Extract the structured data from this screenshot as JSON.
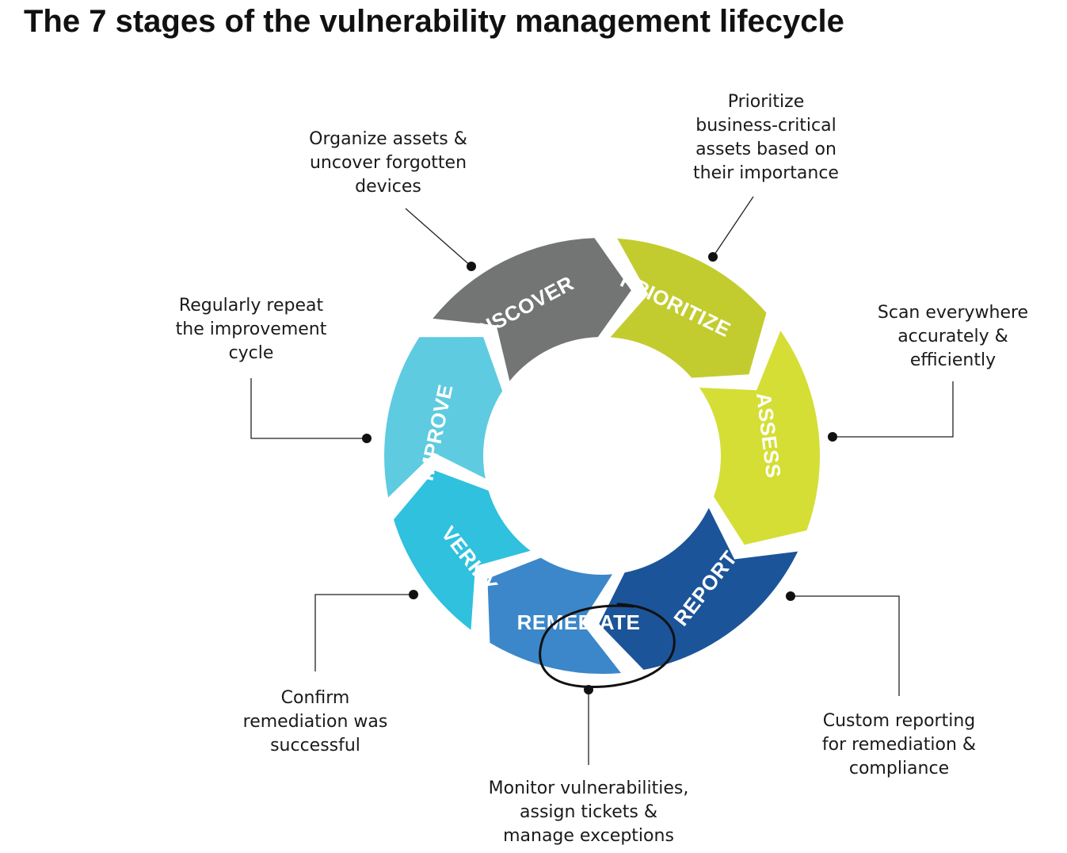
{
  "title": "The 7 stages of the vulnerability management lifecycle",
  "stages": [
    {
      "name": "DISCOVER",
      "color": "#737474",
      "description": [
        "Organize assets &",
        "uncover forgotten",
        "devices"
      ]
    },
    {
      "name": "PRIORITIZE",
      "color": "#c3cc2f",
      "description": [
        "Prioritize",
        "business-critical",
        "assets based on",
        "their importance"
      ]
    },
    {
      "name": "ASSESS",
      "color": "#d5de35",
      "description": [
        "Scan everywhere",
        "accurately &",
        "efficiently"
      ]
    },
    {
      "name": "REPORT",
      "color": "#1c5499",
      "description": [
        "Custom reporting",
        "for remediation &",
        "compliance"
      ]
    },
    {
      "name": "REMEDIATE",
      "color": "#3b87c9",
      "description": [
        "Monitor vulnerabilities,",
        "assign tickets &",
        "manage exceptions"
      ]
    },
    {
      "name": "VERIFY",
      "color": "#2fc1de",
      "description": [
        "Confirm",
        "remediation was",
        "successful"
      ]
    },
    {
      "name": "IMPROVE",
      "color": "#5ecbe0",
      "description": [
        "Regularly repeat",
        "the improvement",
        "cycle"
      ]
    }
  ],
  "highlighted_stage": "REMEDIATE"
}
